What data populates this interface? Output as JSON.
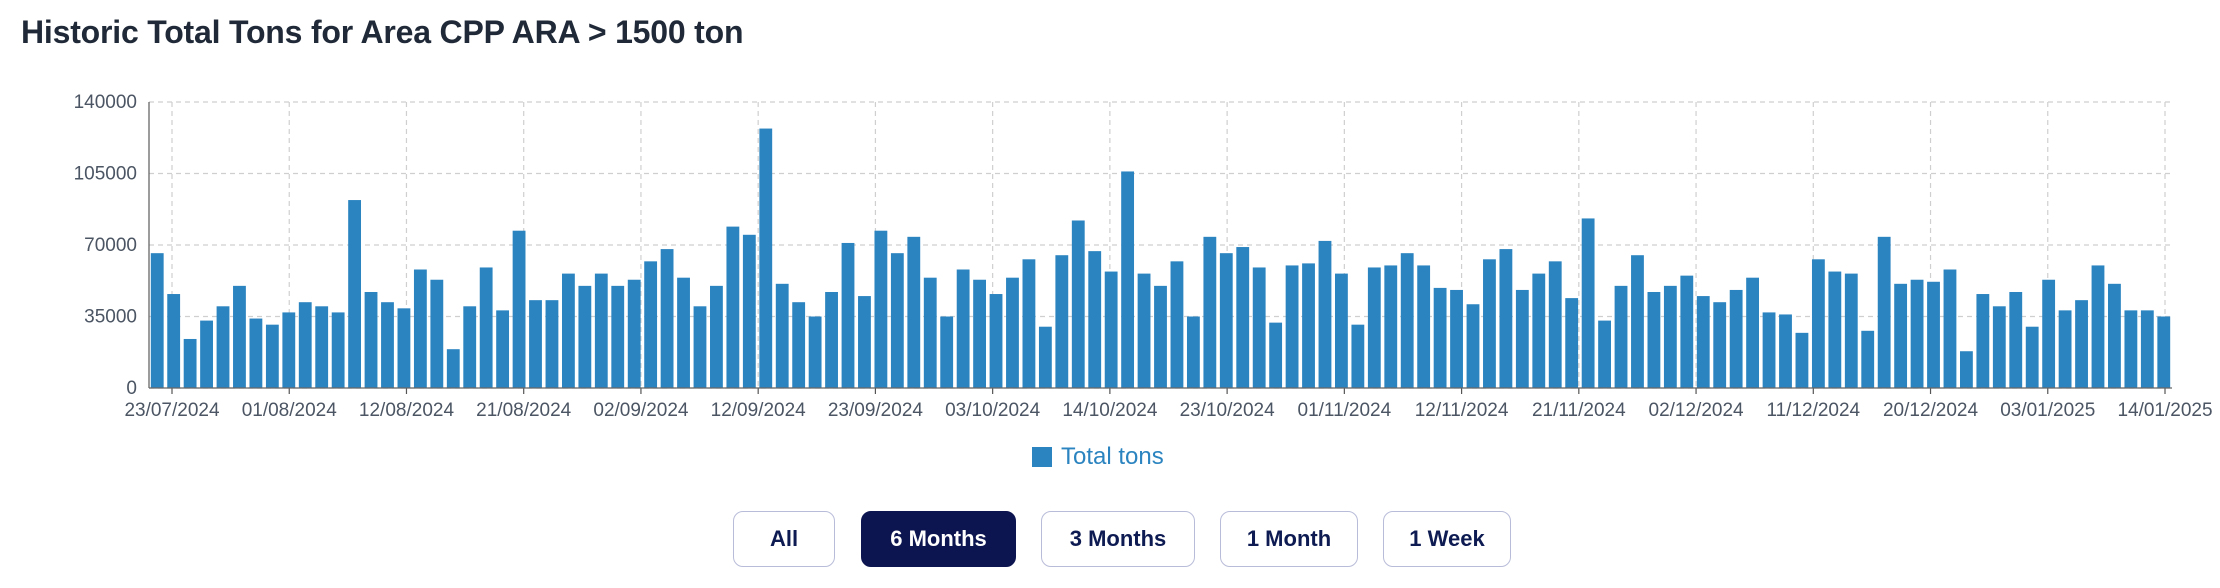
{
  "page": {
    "title": "Historic Total Tons for Area CPP ARA > 1500 ton"
  },
  "colors": {
    "bar": "#2b84c0",
    "active_button": "#0d1550",
    "grid": "#cfcfcf"
  },
  "legend": {
    "label": "Total tons"
  },
  "range_buttons": [
    {
      "label": "All",
      "active": false
    },
    {
      "label": "6 Months",
      "active": true
    },
    {
      "label": "3 Months",
      "active": false
    },
    {
      "label": "1 Month",
      "active": false
    },
    {
      "label": "1 Week",
      "active": false
    }
  ],
  "chart_data": {
    "type": "bar",
    "title": "Historic Total Tons for Area CPP ARA > 1500 ton",
    "xlabel": "",
    "ylabel": "",
    "ylim": [
      0,
      140000
    ],
    "yticks": [
      0,
      35000,
      70000,
      105000,
      140000
    ],
    "grid": true,
    "legend_position": "bottom",
    "x_ticks": [
      "23/07/2024",
      "01/08/2024",
      "12/08/2024",
      "21/08/2024",
      "02/09/2024",
      "12/09/2024",
      "23/09/2024",
      "03/10/2024",
      "14/10/2024",
      "23/10/2024",
      "01/11/2024",
      "12/11/2024",
      "21/11/2024",
      "02/12/2024",
      "11/12/2024",
      "20/12/2024",
      "03/01/2025",
      "14/01/2025"
    ],
    "series": [
      {
        "name": "Total tons",
        "values": [
          66000,
          46000,
          24000,
          33000,
          40000,
          50000,
          34000,
          31000,
          37000,
          42000,
          40000,
          37000,
          92000,
          47000,
          42000,
          39000,
          58000,
          53000,
          19000,
          40000,
          59000,
          38000,
          77000,
          43000,
          43000,
          56000,
          50000,
          56000,
          50000,
          53000,
          62000,
          68000,
          54000,
          40000,
          50000,
          79000,
          75000,
          127000,
          51000,
          42000,
          35000,
          47000,
          71000,
          45000,
          77000,
          66000,
          74000,
          54000,
          35000,
          58000,
          53000,
          46000,
          54000,
          63000,
          30000,
          65000,
          82000,
          67000,
          57000,
          106000,
          56000,
          50000,
          62000,
          35000,
          74000,
          66000,
          69000,
          59000,
          32000,
          60000,
          61000,
          72000,
          56000,
          31000,
          59000,
          60000,
          66000,
          60000,
          49000,
          48000,
          41000,
          63000,
          68000,
          48000,
          56000,
          62000,
          44000,
          83000,
          33000,
          50000,
          65000,
          47000,
          50000,
          55000,
          45000,
          42000,
          48000,
          54000,
          37000,
          36000,
          27000,
          63000,
          57000,
          56000,
          28000,
          74000,
          51000,
          53000,
          52000,
          58000,
          18000,
          46000,
          40000,
          47000,
          30000,
          53000,
          38000,
          43000,
          60000,
          51000,
          38000,
          38000,
          35000
        ]
      }
    ]
  }
}
